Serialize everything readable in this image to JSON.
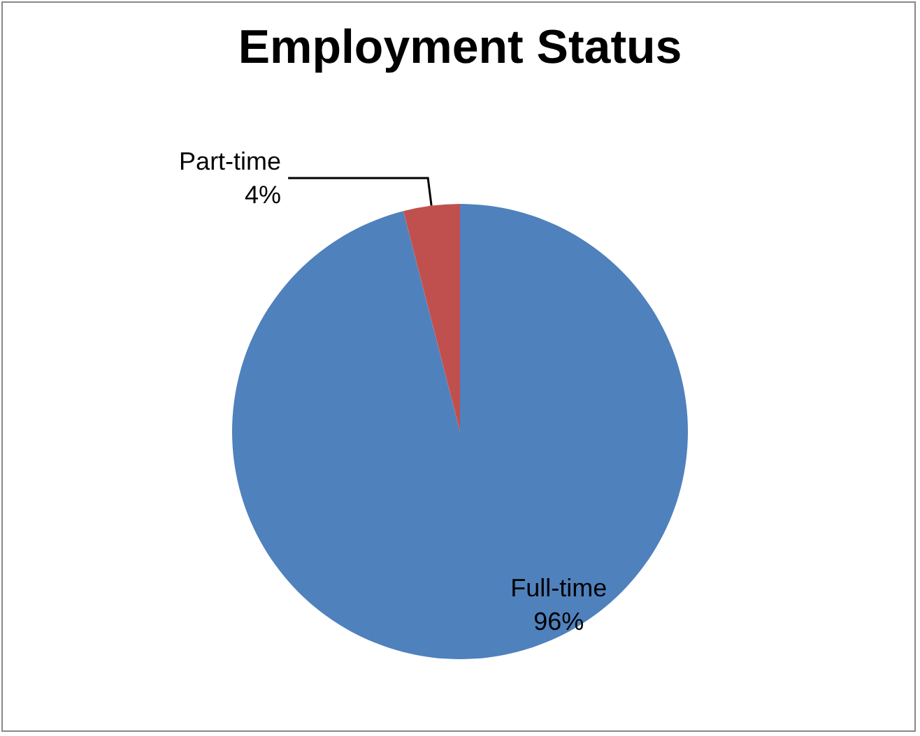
{
  "chart_data": {
    "type": "pie",
    "title": "Employment Status",
    "categories": [
      "Full-time",
      "Part-time"
    ],
    "values": [
      96,
      4
    ],
    "colors": [
      "#4f81bd",
      "#c0504d"
    ],
    "value_labels": [
      "96%",
      "4%"
    ]
  }
}
